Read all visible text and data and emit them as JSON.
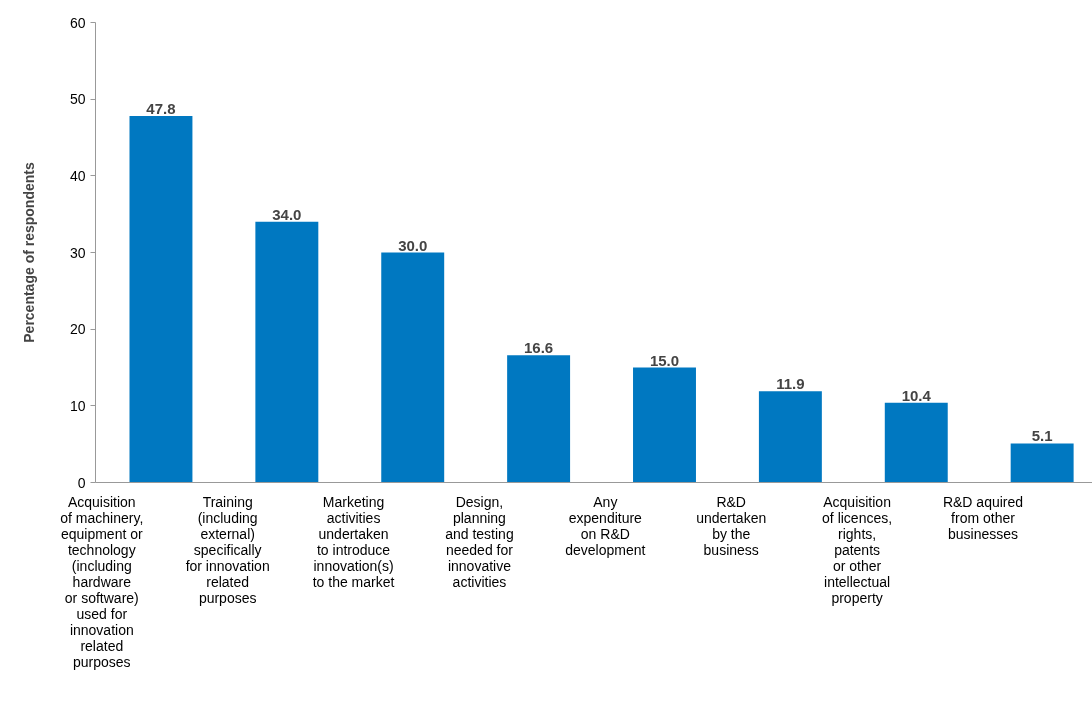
{
  "chart_data": {
    "type": "bar",
    "ylabel": "Percentage of respondents",
    "categories": [
      "Acquisition\nof machinery,\nequipment or\ntechnology\n(including\nhardware\nor software)\nused for\ninnovation\nrelated\npurposes",
      "Training\n(including\nexternal)\nspecifically\nfor innovation\nrelated\npurposes",
      "Marketing\nactivities\nundertaken\nto introduce\ninnovation(s)\nto the market",
      "Design,\nplanning\nand testing\nneeded for\ninnovative\nactivities",
      "Any\nexpenditure\non R&D\ndevelopment",
      "R&D\nundertaken\nby the\nbusiness",
      "Acquisition\nof licences,\nrights,\npatents\nor other\nintellectual\nproperty",
      "R&D aquired\nfrom other\nbusinesses"
    ],
    "values": [
      47.8,
      34.0,
      30.0,
      16.6,
      15.0,
      11.9,
      10.4,
      5.1
    ],
    "value_labels": [
      "47.8",
      "34.0",
      "30.0",
      "16.6",
      "15.0",
      "11.9",
      "10.4",
      "5.1"
    ],
    "color": "#0078c1",
    "ylim": [
      0,
      60
    ],
    "yticks": [
      0,
      10,
      20,
      30,
      40,
      50,
      60
    ]
  }
}
